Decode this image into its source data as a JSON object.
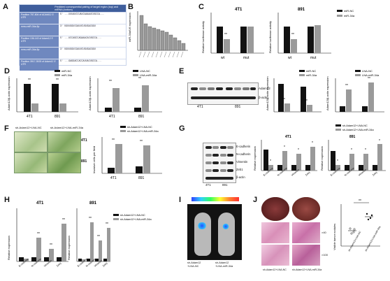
{
  "panels": {
    "A": {
      "letter": "A",
      "header_left": "",
      "header_right": "Predicted consequential pairing of target region (top) and miRNA (bottom)",
      "rows": [
        {
          "pos": "Position 787-804 of ADAM12 3' UTR",
          "seq": "5' ...UUUAUCCUAUCAAAAUCUGCCA..."
        },
        {
          "pos": "mmu-miR-34a-5p",
          "seq": "3' UGUUGGUCGAUUCUGUGACGGU"
        },
        {
          "pos": "Position 136-143 of Adam12 3' UTR",
          "seq": "5' ...UCCAGCCAGAAACACUGCCA..."
        },
        {
          "pos": "mmu-miR-34a-5p",
          "seq": "3' UGUUGGUCGAUUCUGUGACGGU"
        },
        {
          "pos": "Position 3917-3925 of Adam12 3' UTR",
          "seq": "5' ...GAGGACCACCAUUACUGCCA..."
        }
      ]
    },
    "B": {
      "letter": "B",
      "ylabel": "miR-34a/U6 expression"
    },
    "C": {
      "letter": "C",
      "title_4t1": "4T1",
      "title_891": "891",
      "ylabel": "Relative luciferase activity",
      "legend": [
        "miR-NC",
        "miR-34a"
      ],
      "xticks": [
        "wt",
        "mut"
      ],
      "sig": "**"
    },
    "D": {
      "letter": "D",
      "ylabel": "Adam12/β-actin expression",
      "legend_left": [
        "miR-NC",
        "miR-34a"
      ],
      "legend_right": [
        "LNA-NC",
        "LNA-miR-34a"
      ],
      "xticks": [
        "4T1",
        "891"
      ],
      "sig": "**"
    },
    "E": {
      "letter": "E",
      "blot_labels": [
        "Adam12",
        "β-actin"
      ],
      "cells": [
        "4T1",
        "891"
      ],
      "legend_left": [
        "miR-NC",
        "miR-34a"
      ],
      "legend_right": [
        "LNA-NC",
        "LNA-miR-34a"
      ],
      "ylabel": "Adam12/β-actin expression",
      "sig": "**"
    },
    "F": {
      "letter": "F",
      "col_labels": [
        "sh-Adam12+LNA-NC",
        "sh-Adam12+LNA-miR-34a"
      ],
      "row_labels": [
        "4T1",
        "891"
      ],
      "legend": [
        "sh-Adam12+LNA-NC",
        "sh-Adam12+LNA-miR-34a"
      ],
      "ylabel": "Invasive cells per field",
      "xticks": [
        "4T1",
        "891"
      ],
      "sig": "**"
    },
    "G": {
      "letter": "G",
      "blot_labels": [
        "E-cadherin",
        "N-cadherin",
        "Vimentin",
        "Zeb1",
        "β-actin"
      ],
      "cells": [
        "4T1",
        "891"
      ],
      "legend": [
        "sh-Adam12+LNA-NC",
        "sh-Adam12+LNA-miR-34a"
      ],
      "title_4t1": "4T1",
      "title_891": "891",
      "ylabel": "Relative expression",
      "xticks": [
        "E-cadherin",
        "N-cadherin",
        "Vimentin",
        "Zeb1"
      ],
      "sig": "*"
    },
    "H": {
      "letter": "H",
      "title_4t1": "4T1",
      "title_891": "891",
      "ylabel": "Relative expression",
      "legend": [
        "sh-Adam12+LNA-NC",
        "sh-Adam12+LNA-miR-34a"
      ],
      "xticks": [
        "E-cadherin",
        "N-cadherin",
        "Vimentin",
        "Zeb1"
      ],
      "sig": "**"
    },
    "I": {
      "letter": "I",
      "labels": [
        "sh-Adam12",
        "sh-Adam12"
      ],
      "sublabels": [
        "+LNA-NC",
        "+LNA-miR-34a"
      ]
    },
    "J": {
      "letter": "J",
      "ylabel": "Visible tumor nodules",
      "mag1": "×40",
      "mag2": "×100",
      "xticks": [
        "sh-Adam12+LNA-NC",
        "sh-Adam12+LNA-miR-34a"
      ],
      "sig": "**"
    }
  },
  "colors": {
    "black": "#111111",
    "gray": "#9a9a9a",
    "he_pink": "#d98fb8",
    "table_blue": "#3f5e9c"
  }
}
